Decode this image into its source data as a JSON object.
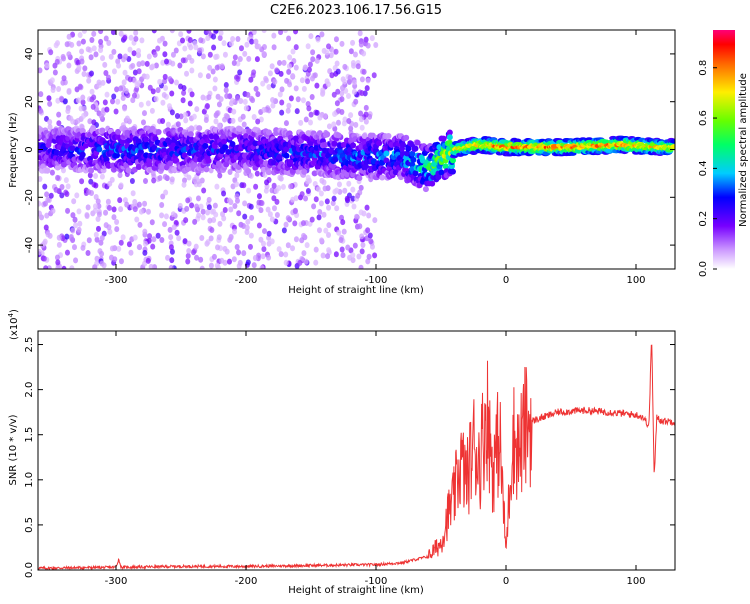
{
  "title": "C2E6.2023.106.17.56.G15",
  "colorbar": {
    "label": "Normalized spectral amplitude",
    "ticks": [
      "0.0",
      "0.2",
      "0.4",
      "0.6",
      "0.8"
    ],
    "tick_values": [
      0.0,
      0.2,
      0.4,
      0.6,
      0.8
    ],
    "range": [
      0,
      0.95
    ]
  },
  "chart_data": [
    {
      "type": "heatmap",
      "title": "",
      "xlabel": "Height of straight line (km)",
      "ylabel": "Frequency (Hz)",
      "xlim": [
        -360,
        130
      ],
      "ylim": [
        -50,
        50
      ],
      "xticks": [
        -300,
        -200,
        -100,
        0,
        100
      ],
      "xtick_labels": [
        "-300",
        "-200",
        "-100",
        "0",
        "100"
      ],
      "yticks": [
        -40,
        -20,
        0,
        20,
        40
      ],
      "ytick_labels": [
        "-40",
        "-20",
        "0",
        "20",
        "40"
      ],
      "colormap": "rainbow (violet→red)",
      "description_points": [
        {
          "x": -330,
          "y": 0,
          "amp": 0.3
        },
        {
          "x": -290,
          "y": 0,
          "amp": 0.35
        },
        {
          "x": -200,
          "y": 0,
          "amp": 0.3
        },
        {
          "x": -120,
          "y": -3,
          "amp": 0.35
        },
        {
          "x": -80,
          "y": -3,
          "amp": 0.4
        },
        {
          "x": -60,
          "y": -8,
          "amp": 0.55
        },
        {
          "x": -40,
          "y": 0,
          "amp": 0.75
        },
        {
          "x": -20,
          "y": 2,
          "amp": 0.85
        },
        {
          "x": 0,
          "y": 1,
          "amp": 0.9
        },
        {
          "x": 50,
          "y": 1,
          "amp": 0.92
        },
        {
          "x": 90,
          "y": 2,
          "amp": 0.9
        },
        {
          "x": 120,
          "y": 1,
          "amp": 0.8
        }
      ]
    },
    {
      "type": "line",
      "title": "",
      "xlabel": "Height of straight line (km)",
      "ylabel": "SNR (10 * v/v)",
      "yscale_label": "(x10",
      "yscale_exp": "4",
      "yscale_close": ")",
      "xlim": [
        -360,
        130
      ],
      "ylim": [
        0,
        2.65
      ],
      "xticks": [
        -300,
        -200,
        -100,
        0,
        100
      ],
      "xtick_labels": [
        "-300",
        "-200",
        "-100",
        "0",
        "100"
      ],
      "yticks": [
        0.0,
        0.5,
        1.0,
        1.5,
        2.0,
        2.5
      ],
      "ytick_labels": [
        "0.0",
        "0.5",
        "1.0",
        "1.5",
        "2.0",
        "2.5"
      ],
      "series": [
        {
          "color": "#ee3333",
          "x": [
            -360,
            -300,
            -298,
            -296,
            -250,
            -200,
            -150,
            -100,
            -80,
            -60,
            -50,
            -45,
            -40,
            -35,
            -30,
            -25,
            -20,
            -15,
            -10,
            -5,
            0,
            5,
            10,
            15,
            20,
            30,
            40,
            60,
            80,
            100,
            105,
            110,
            112,
            114,
            116,
            120,
            130
          ],
          "y": [
            0.02,
            0.03,
            0.12,
            0.03,
            0.04,
            0.04,
            0.05,
            0.06,
            0.08,
            0.15,
            0.3,
            0.6,
            0.8,
            1.2,
            1.0,
            1.4,
            1.2,
            1.8,
            1.1,
            1.5,
            0.2,
            1.5,
            1.3,
            1.6,
            1.65,
            1.7,
            1.75,
            1.77,
            1.75,
            1.72,
            1.7,
            1.6,
            2.62,
            1.0,
            1.7,
            1.65,
            1.65
          ]
        }
      ]
    }
  ]
}
